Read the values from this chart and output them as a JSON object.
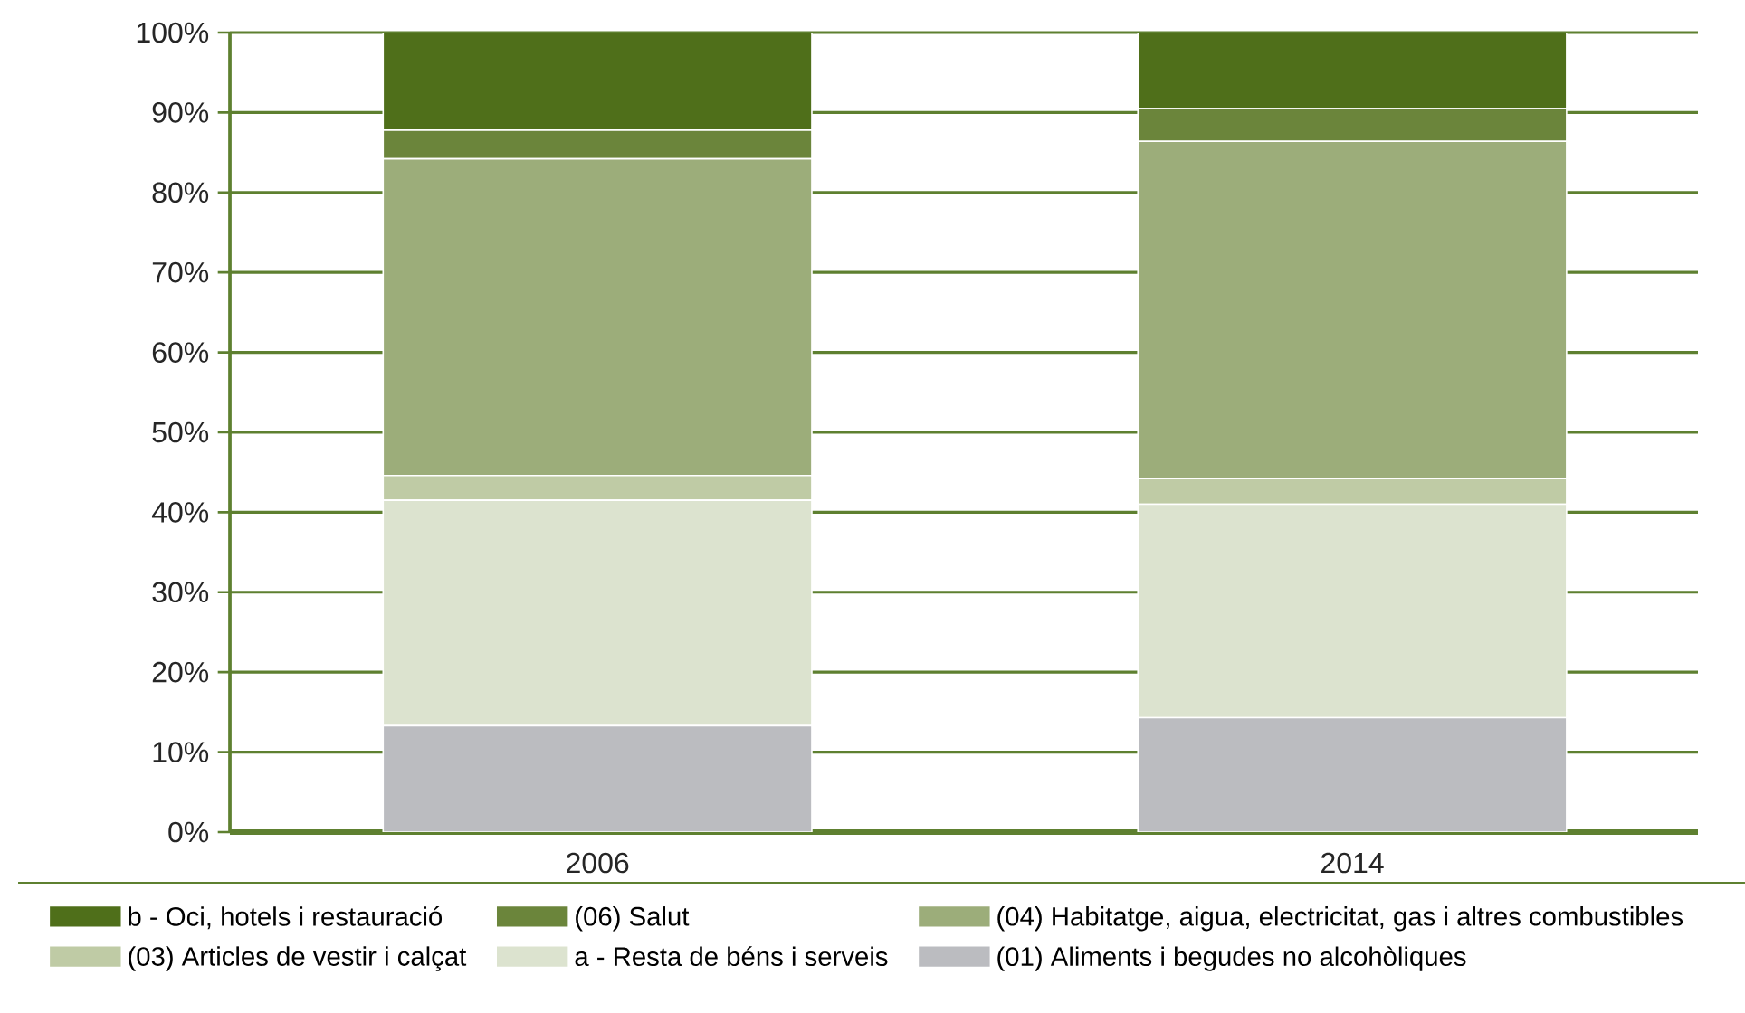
{
  "chart_data": {
    "type": "bar",
    "stacked": true,
    "categories": [
      "2006",
      "2014"
    ],
    "series": [
      {
        "name": "(01) Aliments i begudes no alcohòliques",
        "color": "#bbbcc0",
        "values": [
          13.3,
          14.3
        ]
      },
      {
        "name": "a - Resta de béns i serveis",
        "color": "#dce3cf",
        "values": [
          28.2,
          26.7
        ]
      },
      {
        "name": "(03) Articles de vestir i calçat",
        "color": "#bfcba5",
        "values": [
          3.1,
          3.2
        ]
      },
      {
        "name": "(04) Habitatge, aigua, electricitat, gas i altres combustibles",
        "color": "#9cad7a",
        "values": [
          39.6,
          42.2
        ]
      },
      {
        "name": "(06) Salut",
        "color": "#6b853b",
        "values": [
          3.6,
          4.1
        ]
      },
      {
        "name": "b - Oci, hotels i restauració",
        "color": "#4f6f1a",
        "values": [
          12.2,
          9.5
        ]
      }
    ],
    "ylim": [
      0,
      100
    ],
    "yticks": [
      {
        "value": 0,
        "label": "0%"
      },
      {
        "value": 10,
        "label": "10%"
      },
      {
        "value": 20,
        "label": "20%"
      },
      {
        "value": 30,
        "label": "30%"
      },
      {
        "value": 40,
        "label": "40%"
      },
      {
        "value": 50,
        "label": "50%"
      },
      {
        "value": 60,
        "label": "60%"
      },
      {
        "value": 70,
        "label": "70%"
      },
      {
        "value": 80,
        "label": "80%"
      },
      {
        "value": 90,
        "label": "90%"
      },
      {
        "value": 100,
        "label": "100%"
      }
    ],
    "grid": "y",
    "legend": "bottom"
  }
}
